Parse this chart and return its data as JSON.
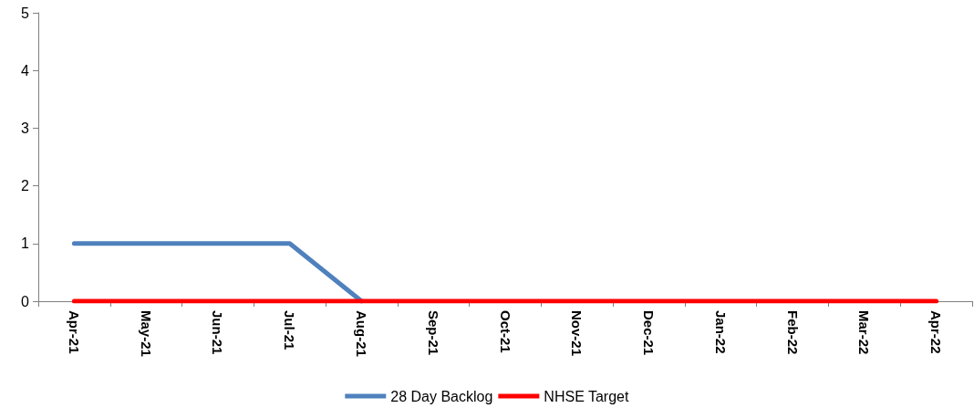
{
  "chart_data": {
    "type": "line",
    "categories": [
      "Apr-21",
      "May-21",
      "Jun-21",
      "Jul-21",
      "Aug-21",
      "Sep-21",
      "Oct-21",
      "Nov-21",
      "Dec-21",
      "Jan-22",
      "Feb-22",
      "Mar-22",
      "Apr-22"
    ],
    "series": [
      {
        "name": "28 Day Backlog",
        "color": "#4f81bd",
        "values": [
          1,
          1,
          1,
          1,
          0,
          null,
          null,
          null,
          null,
          null,
          null,
          null,
          null
        ]
      },
      {
        "name": "NHSE Target",
        "color": "#ff0000",
        "values": [
          0,
          0,
          0,
          0,
          0,
          0,
          0,
          0,
          0,
          0,
          0,
          0,
          0
        ]
      }
    ],
    "ylim": [
      0,
      5
    ],
    "yticks": [
      0,
      1,
      2,
      3,
      4,
      5
    ],
    "grid": false,
    "legend": "bottom",
    "marker": "none",
    "line_style": "solid"
  }
}
